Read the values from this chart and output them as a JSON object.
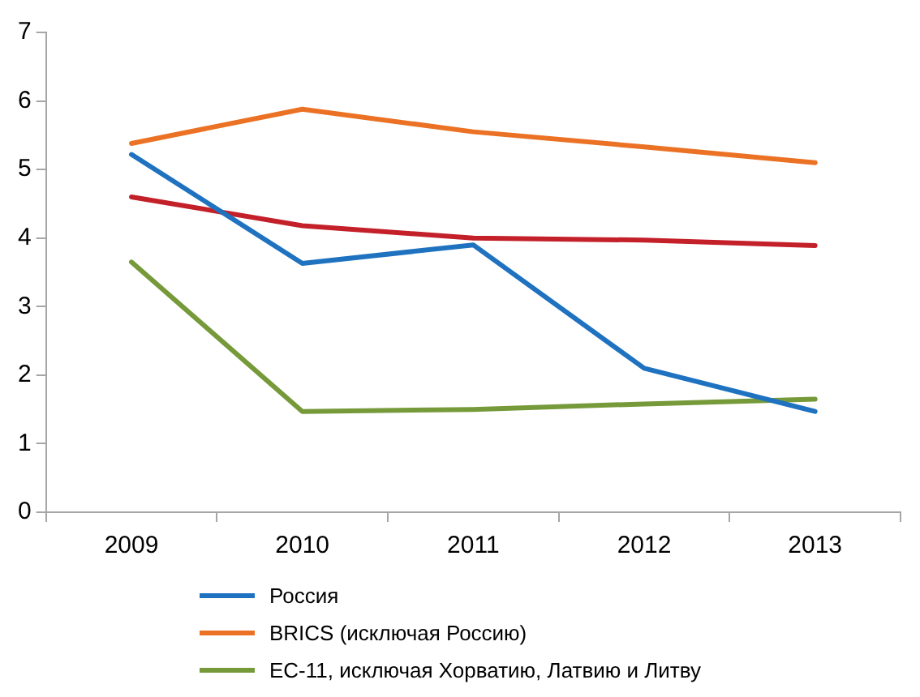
{
  "chart_data": {
    "type": "line",
    "categories": [
      "2009",
      "2010",
      "2011",
      "2012",
      "2013"
    ],
    "series": [
      {
        "name": "Россия",
        "color": "#1f72c0",
        "values": [
          5.22,
          3.63,
          3.9,
          2.1,
          1.47
        ]
      },
      {
        "name": "BRICS (исключая Россию)",
        "color": "#eb7225",
        "values": [
          5.38,
          5.88,
          5.55,
          5.33,
          5.1
        ]
      },
      {
        "color": "#c3202a",
        "values": [
          4.6,
          4.18,
          4.0,
          3.97,
          3.89
        ]
      },
      {
        "name": "ЕС-11, исключая Хорватию, Латвию и Литву",
        "color": "#769a3a",
        "values": [
          3.65,
          1.47,
          1.5,
          1.58,
          1.65
        ]
      }
    ],
    "ylim": [
      0,
      7
    ],
    "yticks": [
      0,
      1,
      2,
      3,
      4,
      5,
      6,
      7
    ],
    "legend": "bottom",
    "marker": "none",
    "line_style": "solid"
  }
}
